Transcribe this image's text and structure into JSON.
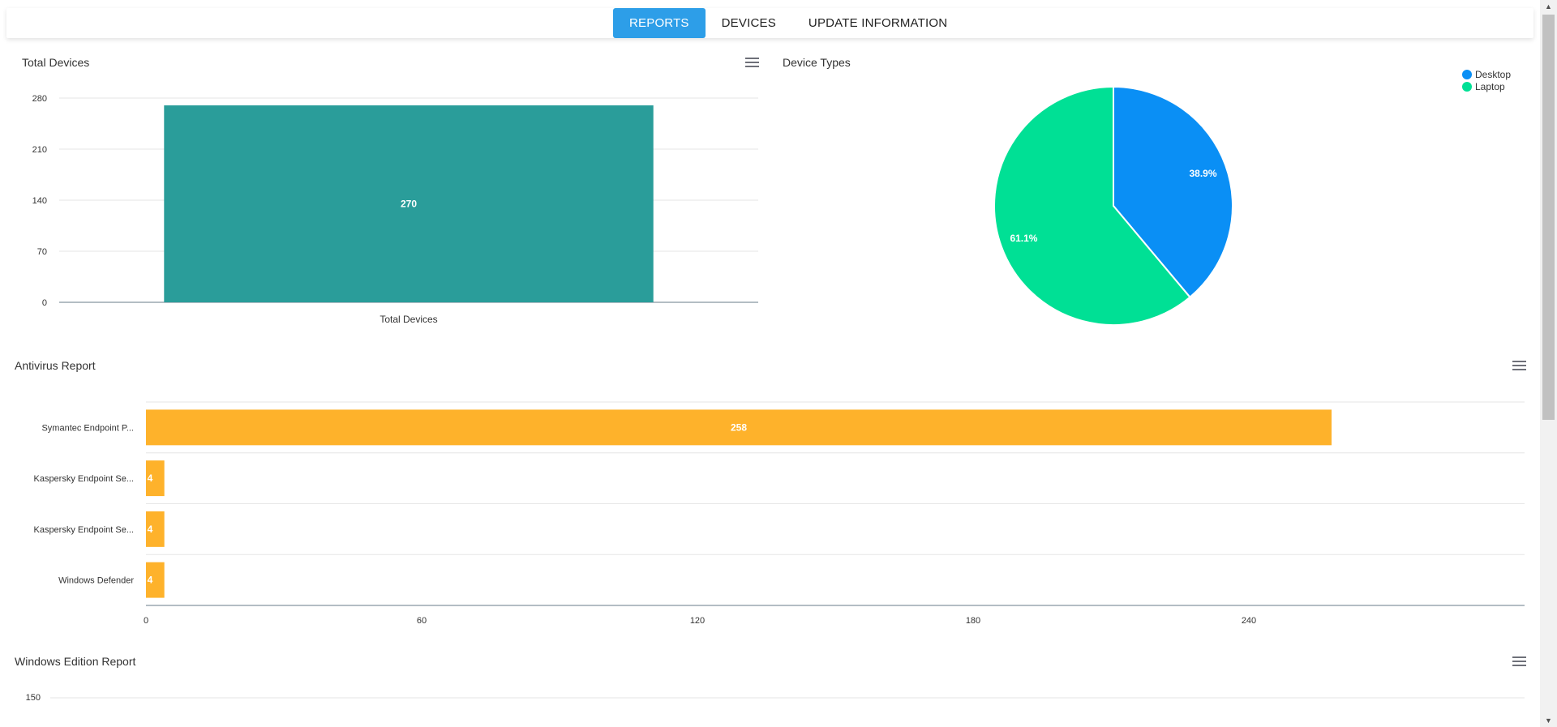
{
  "tabs": [
    {
      "label": "REPORTS",
      "active": true
    },
    {
      "label": "DEVICES",
      "active": false
    },
    {
      "label": "UPDATE INFORMATION",
      "active": false
    }
  ],
  "colors": {
    "accent": "#2d9ee8",
    "teal": "#2a9d9a",
    "desktop": "#0a8ff5",
    "laptop": "#00e095",
    "orange": "#feb22b"
  },
  "chart_data": [
    {
      "id": "total-devices",
      "type": "bar",
      "title": "Total Devices",
      "categories": [
        "Total Devices"
      ],
      "values": [
        270
      ],
      "ylim": [
        0,
        280
      ],
      "yticks": [
        0,
        70,
        140,
        210,
        280
      ],
      "xlabel": "",
      "ylabel": ""
    },
    {
      "id": "device-types",
      "type": "pie",
      "title": "Device Types",
      "labels": [
        "Desktop",
        "Laptop"
      ],
      "values": [
        38.9,
        61.1
      ],
      "value_labels": [
        "38.9%",
        "61.1%"
      ],
      "legend": "top-right"
    },
    {
      "id": "antivirus-report",
      "type": "bar",
      "orientation": "horizontal",
      "title": "Antivirus Report",
      "categories": [
        "Symantec Endpoint P...",
        "Kaspersky Endpoint Se...",
        "Kaspersky Endpoint Se...",
        "Windows Defender"
      ],
      "values": [
        258,
        4,
        4,
        4
      ],
      "xlim": [
        0,
        300
      ],
      "xticks": [
        0,
        60,
        120,
        180,
        240
      ]
    },
    {
      "id": "windows-edition-report",
      "type": "bar",
      "title": "Windows Edition Report",
      "yticks_visible": [
        150
      ]
    }
  ]
}
